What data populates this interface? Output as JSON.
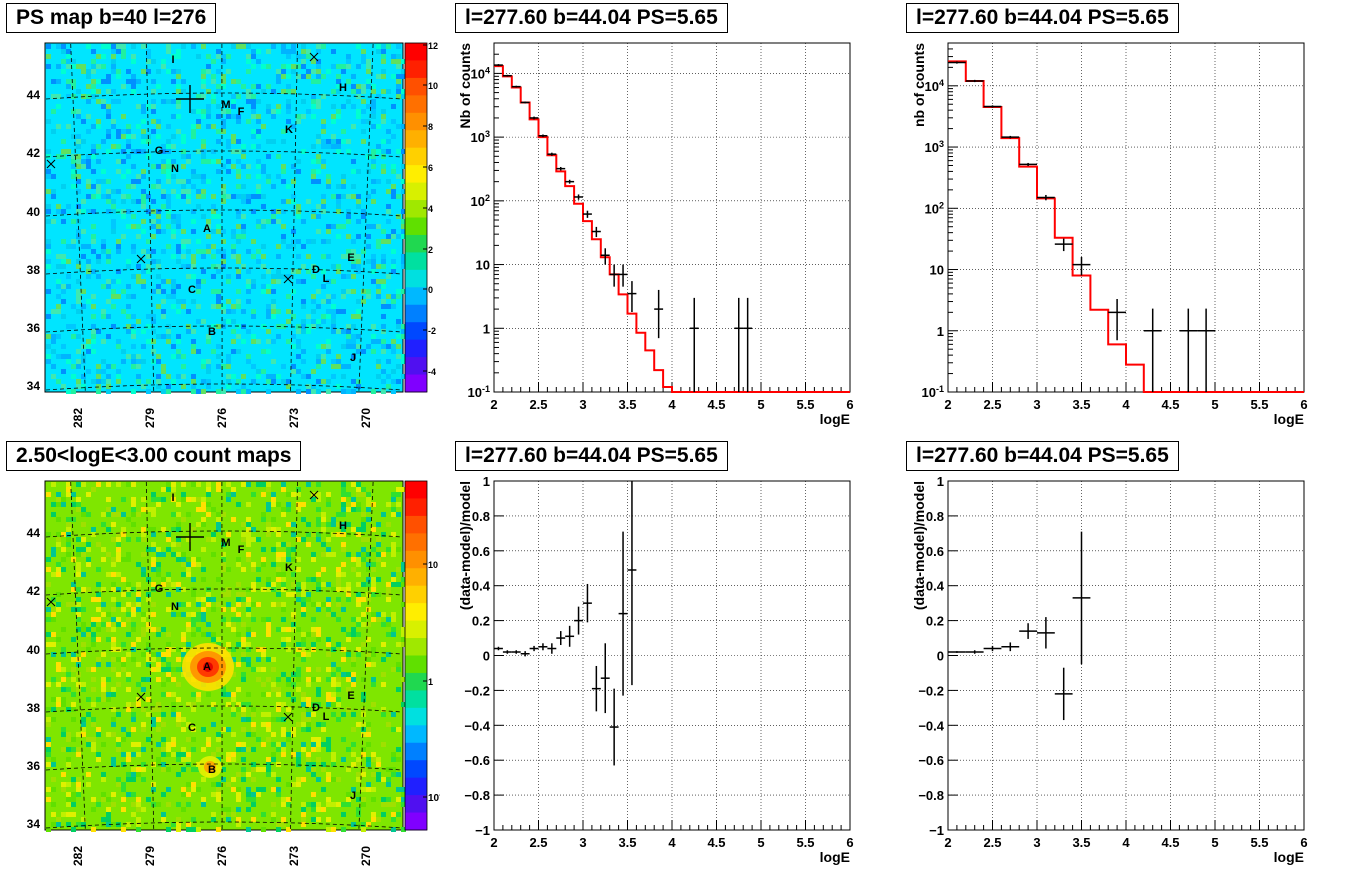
{
  "titles": {
    "map_top": "PS map b=40 l=276",
    "map_bottom": "2.50<logE<3.00 count maps",
    "spec_a": "l=277.60 b=44.04 PS=5.65",
    "spec_b": "l=277.60 b=44.04 PS=5.65",
    "resid_a": "l=277.60 b=44.04 PS=5.65",
    "resid_b": "l=277.60 b=44.04 PS=5.65"
  },
  "maps": {
    "lat_ticks": [
      "34",
      "36",
      "38",
      "40",
      "42",
      "44"
    ],
    "lon_ticks": [
      "282",
      "279",
      "276",
      "273",
      "270"
    ],
    "source_labels": [
      "I",
      "H",
      "M",
      "F",
      "K",
      "G",
      "N",
      "A",
      "E",
      "D",
      "L",
      "C",
      "B",
      "J"
    ],
    "top_colorbar_ticks": [
      "12",
      "10",
      "8",
      "6",
      "4",
      "2",
      "0",
      "-2",
      "-4"
    ],
    "bottom_colorbar_ticks": [
      "10",
      "1",
      "10-1"
    ],
    "top_background": "#00e5ff",
    "bottom_background": "#7fe600"
  },
  "chart_data": [
    {
      "type": "line",
      "name": "spectrum_a",
      "xlabel": "logE",
      "ylabel": "Nb of counts",
      "xlim": [
        2,
        6
      ],
      "ylim": [
        0.1,
        30000
      ],
      "log_y": true,
      "x_ticks": [
        "2",
        "2.5",
        "3",
        "3.5",
        "4",
        "4.5",
        "5",
        "5.5",
        "6"
      ],
      "y_ticks": [
        "10-1",
        "1",
        "10",
        "102",
        "103",
        "104"
      ],
      "model_color": "#ff0000",
      "model_step_edges": [
        2.0,
        2.1,
        2.2,
        2.3,
        2.4,
        2.5,
        2.6,
        2.7,
        2.8,
        2.9,
        3.0,
        3.1,
        3.2,
        3.3,
        3.4,
        3.5,
        3.6,
        3.7,
        3.8,
        3.9,
        4.0,
        4.1,
        4.2,
        6.0
      ],
      "model_values": [
        13000,
        9000,
        6000,
        3500,
        1900,
        1000,
        520,
        290,
        170,
        90,
        48,
        25,
        13,
        7,
        3.4,
        1.7,
        0.85,
        0.45,
        0.22,
        0.12,
        0.1,
        0.1,
        0.1
      ],
      "data": [
        {
          "x": 2.05,
          "y": 13500,
          "xerr": 0.05,
          "ylo": 13000,
          "yhi": 14000
        },
        {
          "x": 2.15,
          "y": 9200,
          "xerr": 0.05,
          "ylo": 8900,
          "yhi": 9500
        },
        {
          "x": 2.25,
          "y": 6200,
          "xerr": 0.05,
          "ylo": 6000,
          "yhi": 6400
        },
        {
          "x": 2.35,
          "y": 3500,
          "xerr": 0.05,
          "ylo": 3380,
          "yhi": 3620
        },
        {
          "x": 2.45,
          "y": 2000,
          "xerr": 0.05,
          "ylo": 1900,
          "yhi": 2100
        },
        {
          "x": 2.55,
          "y": 1050,
          "xerr": 0.05,
          "ylo": 1000,
          "yhi": 1100
        },
        {
          "x": 2.65,
          "y": 540,
          "xerr": 0.05,
          "ylo": 510,
          "yhi": 570
        },
        {
          "x": 2.75,
          "y": 320,
          "xerr": 0.05,
          "ylo": 300,
          "yhi": 340
        },
        {
          "x": 2.85,
          "y": 200,
          "xerr": 0.05,
          "ylo": 186,
          "yhi": 214
        },
        {
          "x": 2.95,
          "y": 115,
          "xerr": 0.05,
          "ylo": 104,
          "yhi": 126
        },
        {
          "x": 3.05,
          "y": 62,
          "xerr": 0.05,
          "ylo": 54,
          "yhi": 70
        },
        {
          "x": 3.15,
          "y": 33,
          "xerr": 0.05,
          "ylo": 27,
          "yhi": 39
        },
        {
          "x": 3.25,
          "y": 14,
          "xerr": 0.05,
          "ylo": 10,
          "yhi": 18
        },
        {
          "x": 3.35,
          "y": 7,
          "xerr": 0.05,
          "ylo": 4.5,
          "yhi": 10
        },
        {
          "x": 3.45,
          "y": 7,
          "xerr": 0.05,
          "ylo": 4.5,
          "yhi": 10
        },
        {
          "x": 3.55,
          "y": 3.5,
          "xerr": 0.05,
          "ylo": 1.8,
          "yhi": 5.5
        },
        {
          "x": 3.85,
          "y": 2,
          "xerr": 0.05,
          "ylo": 0.7,
          "yhi": 4
        },
        {
          "x": 4.25,
          "y": 1,
          "xerr": 0.05,
          "ylo": 0.1,
          "yhi": 3
        },
        {
          "x": 4.75,
          "y": 1,
          "xerr": 0.05,
          "ylo": 0.1,
          "yhi": 3
        },
        {
          "x": 4.85,
          "y": 1,
          "xerr": 0.05,
          "ylo": 0.1,
          "yhi": 3
        }
      ]
    },
    {
      "type": "line",
      "name": "spectrum_b",
      "xlabel": "logE",
      "ylabel": "nb of counts",
      "xlim": [
        2,
        6
      ],
      "ylim": [
        0.1,
        50000
      ],
      "log_y": true,
      "x_ticks": [
        "2",
        "2.5",
        "3",
        "3.5",
        "4",
        "4.5",
        "5",
        "5.5",
        "6"
      ],
      "y_ticks": [
        "10-1",
        "1",
        "10",
        "102",
        "103",
        "104"
      ],
      "model_color": "#ff0000",
      "model_step_edges": [
        2.0,
        2.2,
        2.4,
        2.6,
        2.8,
        3.0,
        3.2,
        3.4,
        3.6,
        3.8,
        4.0,
        4.2,
        6.0
      ],
      "model_values": [
        25000,
        12000,
        4500,
        1400,
        480,
        145,
        33,
        8,
        2.2,
        0.6,
        0.28,
        0.1
      ],
      "data": [
        {
          "x": 2.1,
          "y": 24000,
          "xerr": 0.1,
          "ylo": 23000,
          "yhi": 25000
        },
        {
          "x": 2.3,
          "y": 12000,
          "xerr": 0.1,
          "ylo": 11500,
          "yhi": 12500
        },
        {
          "x": 2.5,
          "y": 4600,
          "xerr": 0.1,
          "ylo": 4400,
          "yhi": 4800
        },
        {
          "x": 2.7,
          "y": 1450,
          "xerr": 0.1,
          "ylo": 1380,
          "yhi": 1520
        },
        {
          "x": 2.9,
          "y": 520,
          "xerr": 0.1,
          "ylo": 490,
          "yhi": 550
        },
        {
          "x": 3.1,
          "y": 150,
          "xerr": 0.1,
          "ylo": 135,
          "yhi": 165
        },
        {
          "x": 3.3,
          "y": 26,
          "xerr": 0.1,
          "ylo": 20,
          "yhi": 32
        },
        {
          "x": 3.5,
          "y": 12,
          "xerr": 0.1,
          "ylo": 8,
          "yhi": 16
        },
        {
          "x": 3.9,
          "y": 2,
          "xerr": 0.1,
          "ylo": 0.7,
          "yhi": 3.3
        },
        {
          "x": 4.3,
          "y": 1,
          "xerr": 0.1,
          "ylo": 0.1,
          "yhi": 2.3
        },
        {
          "x": 4.7,
          "y": 1,
          "xerr": 0.1,
          "ylo": 0.1,
          "yhi": 2.3
        },
        {
          "x": 4.9,
          "y": 1,
          "xerr": 0.1,
          "ylo": 0.1,
          "yhi": 2.3
        }
      ]
    },
    {
      "type": "scatter",
      "name": "residual_a",
      "xlabel": "logE",
      "ylabel": "(data-model)/model",
      "xlim": [
        2,
        6
      ],
      "ylim": [
        -1,
        1
      ],
      "x_ticks": [
        "2",
        "2.5",
        "3",
        "3.5",
        "4",
        "4.5",
        "5",
        "5.5",
        "6"
      ],
      "y_ticks": [
        "-1",
        "-0.8",
        "-0.6",
        "-0.4",
        "-0.2",
        "0",
        "0.2",
        "0.4",
        "0.6",
        "0.8",
        "1"
      ],
      "data": [
        {
          "x": 2.05,
          "y": 0.04,
          "xerr": 0.05,
          "err": 0.01
        },
        {
          "x": 2.15,
          "y": 0.02,
          "xerr": 0.05,
          "err": 0.01
        },
        {
          "x": 2.25,
          "y": 0.02,
          "xerr": 0.05,
          "err": 0.01
        },
        {
          "x": 2.35,
          "y": 0.01,
          "xerr": 0.05,
          "err": 0.015
        },
        {
          "x": 2.45,
          "y": 0.04,
          "xerr": 0.05,
          "err": 0.015
        },
        {
          "x": 2.55,
          "y": 0.05,
          "xerr": 0.05,
          "err": 0.02
        },
        {
          "x": 2.65,
          "y": 0.04,
          "xerr": 0.05,
          "err": 0.03
        },
        {
          "x": 2.75,
          "y": 0.1,
          "xerr": 0.05,
          "err": 0.04
        },
        {
          "x": 2.85,
          "y": 0.11,
          "xerr": 0.05,
          "err": 0.06
        },
        {
          "x": 2.95,
          "y": 0.2,
          "xerr": 0.05,
          "err": 0.08
        },
        {
          "x": 3.05,
          "y": 0.3,
          "xerr": 0.05,
          "err": 0.11
        },
        {
          "x": 3.15,
          "y": -0.19,
          "xerr": 0.05,
          "err": 0.13
        },
        {
          "x": 3.25,
          "y": -0.13,
          "xerr": 0.05,
          "err": 0.2
        },
        {
          "x": 3.35,
          "y": -0.41,
          "xerr": 0.05,
          "err": 0.22
        },
        {
          "x": 3.45,
          "y": 0.24,
          "xerr": 0.05,
          "err": 0.47
        },
        {
          "x": 3.55,
          "y": 0.49,
          "xerr": 0.05,
          "err": 0.66
        }
      ]
    },
    {
      "type": "scatter",
      "name": "residual_b",
      "xlabel": "logE",
      "ylabel": "(data-model)/model",
      "xlim": [
        2,
        6
      ],
      "ylim": [
        -1,
        1
      ],
      "x_ticks": [
        "2",
        "2.5",
        "3",
        "3.5",
        "4",
        "4.5",
        "5",
        "5.5",
        "6"
      ],
      "y_ticks": [
        "-1",
        "-0.8",
        "-0.6",
        "-0.4",
        "-0.2",
        "0",
        "0.2",
        "0.4",
        "0.6",
        "0.8",
        "1"
      ],
      "data": [
        {
          "x": 2.1,
          "y": 0.02,
          "xerr": 0.1,
          "err": 0.005
        },
        {
          "x": 2.3,
          "y": 0.02,
          "xerr": 0.1,
          "err": 0.01
        },
        {
          "x": 2.5,
          "y": 0.04,
          "xerr": 0.1,
          "err": 0.015
        },
        {
          "x": 2.7,
          "y": 0.05,
          "xerr": 0.1,
          "err": 0.025
        },
        {
          "x": 2.9,
          "y": 0.14,
          "xerr": 0.1,
          "err": 0.045
        },
        {
          "x": 3.1,
          "y": 0.13,
          "xerr": 0.1,
          "err": 0.09
        },
        {
          "x": 3.3,
          "y": -0.22,
          "xerr": 0.1,
          "err": 0.15
        },
        {
          "x": 3.5,
          "y": 0.33,
          "xerr": 0.1,
          "err": 0.38
        }
      ]
    }
  ]
}
